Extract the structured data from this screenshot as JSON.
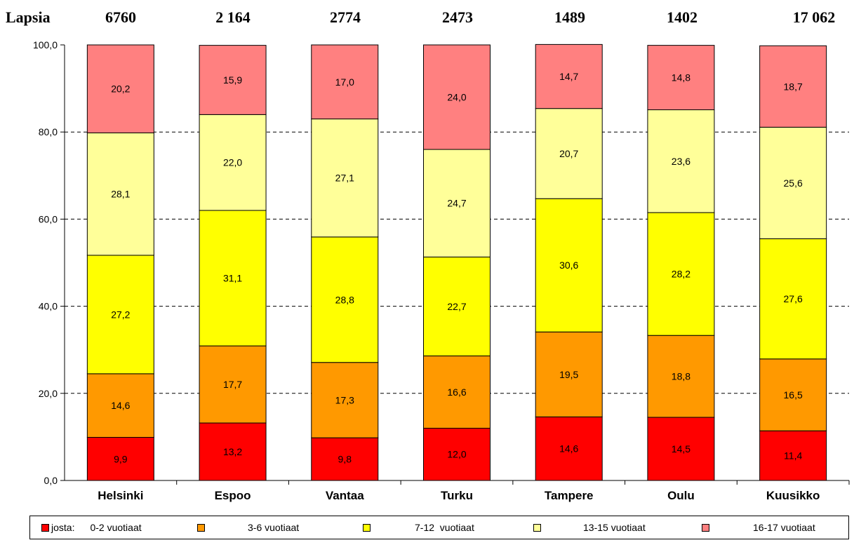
{
  "header": {
    "label": "Lapsia",
    "counts": [
      "6760",
      "2 164",
      "2774",
      "2473",
      "1489",
      "1402",
      "17 062"
    ]
  },
  "chart_data": {
    "type": "bar",
    "stacked": true,
    "categories": [
      "Helsinki",
      "Espoo",
      "Vantaa",
      "Turku",
      "Tampere",
      "Oulu",
      "Kuusikko"
    ],
    "series": [
      {
        "name": "0-2 vuotiaat",
        "color": "#ff0000",
        "values": [
          9.9,
          13.2,
          9.8,
          12.0,
          14.6,
          14.5,
          11.4
        ]
      },
      {
        "name": "3-6 vuotiaat",
        "color": "#ff9900",
        "values": [
          14.6,
          17.7,
          17.3,
          16.6,
          19.5,
          18.8,
          16.5
        ]
      },
      {
        "name": "7-12  vuotiaat",
        "color": "#ffff00",
        "values": [
          27.2,
          31.1,
          28.8,
          22.7,
          30.6,
          28.2,
          27.6
        ]
      },
      {
        "name": "13-15 vuotiaat",
        "color": "#ffff99",
        "values": [
          28.1,
          22.0,
          27.1,
          24.7,
          20.7,
          23.6,
          25.6
        ]
      },
      {
        "name": "16-17 vuotiaat",
        "color": "#ff8080",
        "values": [
          20.2,
          15.9,
          17.0,
          24.0,
          14.7,
          14.8,
          18.7
        ]
      }
    ],
    "value_labels": [
      [
        "9,9",
        "13,2",
        "9,8",
        "12,0",
        "14,6",
        "14,5",
        "11,4"
      ],
      [
        "14,6",
        "17,7",
        "17,3",
        "16,6",
        "19,5",
        "18,8",
        "16,5"
      ],
      [
        "27,2",
        "31,1",
        "28,8",
        "22,7",
        "30,6",
        "28,2",
        "27,6"
      ],
      [
        "28,1",
        "22,0",
        "27,1",
        "24,7",
        "20,7",
        "23,6",
        "25,6"
      ],
      [
        "20,2",
        "15,9",
        "17,0",
        "24,0",
        "14,7",
        "14,8",
        "18,7"
      ]
    ],
    "ylim": [
      0,
      100
    ],
    "yticks": [
      0,
      20,
      40,
      60,
      80,
      100
    ],
    "ytick_labels": [
      "0,0",
      "20,0",
      "40,0",
      "60,0",
      "80,0",
      "100,0"
    ],
    "grid": "dashed horizontal",
    "legend_position": "bottom"
  },
  "legend": {
    "prefix": "josta:"
  }
}
